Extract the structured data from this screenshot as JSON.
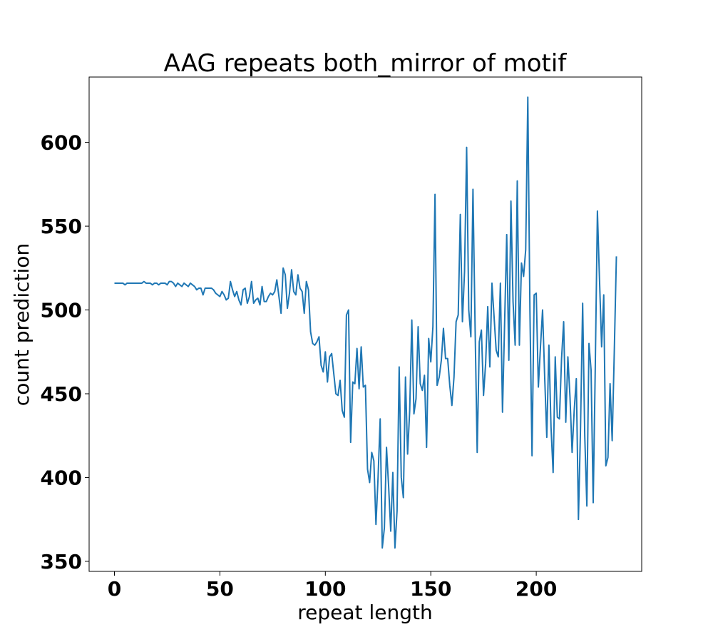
{
  "chart_data": {
    "type": "line",
    "title": "AAG repeats both_mirror of motif",
    "xlabel": "repeat length",
    "ylabel": "count prediction",
    "xlim": [
      -12,
      250
    ],
    "ylim": [
      344,
      639
    ],
    "xticks": [
      0,
      50,
      100,
      150,
      200
    ],
    "yticks": [
      350,
      400,
      450,
      500,
      550,
      600
    ],
    "xtick_labels": [
      "0",
      "50",
      "100",
      "150",
      "200"
    ],
    "ytick_labels": [
      "350",
      "400",
      "450",
      "500",
      "550",
      "600"
    ],
    "grid": false,
    "line_color": "#1f77b4",
    "series": [
      {
        "x_start": 0,
        "values": [
          516,
          516,
          516,
          516,
          516,
          515,
          516,
          516,
          516,
          516,
          516,
          516,
          516,
          516,
          517,
          516,
          516,
          516,
          515,
          516,
          516,
          515,
          516,
          516,
          516,
          515,
          517,
          517,
          516,
          514,
          516,
          515,
          514,
          516,
          515,
          514,
          516,
          515,
          514,
          512,
          513,
          513,
          509,
          513,
          513,
          513,
          513,
          512,
          510,
          509,
          508,
          511,
          509,
          506,
          507,
          517,
          512,
          508,
          511,
          506,
          503,
          512,
          513,
          504,
          508,
          517,
          504,
          506,
          507,
          503,
          514,
          505,
          505,
          508,
          510,
          509,
          511,
          518,
          508,
          498,
          525,
          521,
          501,
          510,
          524,
          511,
          509,
          521,
          513,
          511,
          498,
          517,
          512,
          487,
          480,
          479,
          481,
          484,
          467,
          463,
          475,
          457,
          472,
          474,
          462,
          450,
          449,
          458,
          440,
          436,
          497,
          500,
          421,
          457,
          456,
          477,
          453,
          478,
          454,
          455,
          405,
          397,
          415,
          410,
          372,
          400,
          435,
          358,
          370,
          418,
          395,
          368,
          403,
          358,
          380,
          466,
          400,
          388,
          460,
          414,
          440,
          494,
          438,
          447,
          490,
          456,
          452,
          461,
          418,
          483,
          469,
          490,
          569,
          455,
          460,
          470,
          489,
          471,
          471,
          455,
          443,
          460,
          493,
          497,
          557,
          493,
          523,
          597,
          500,
          484,
          572,
          490,
          415,
          481,
          488,
          449,
          468,
          502,
          466,
          516,
          496,
          476,
          472,
          516,
          439,
          492,
          545,
          470,
          565,
          505,
          479,
          577,
          479,
          528,
          520,
          536,
          627,
          500,
          413,
          509,
          510,
          454,
          478,
          500,
          460,
          424,
          479,
          430,
          403,
          472,
          436,
          435,
          471,
          493,
          433,
          472,
          448,
          415,
          440,
          459,
          375,
          430,
          504,
          425,
          383,
          480,
          464,
          385,
          467,
          559,
          518,
          478,
          509,
          407,
          412,
          456,
          422,
          475,
          532
        ]
      }
    ]
  }
}
